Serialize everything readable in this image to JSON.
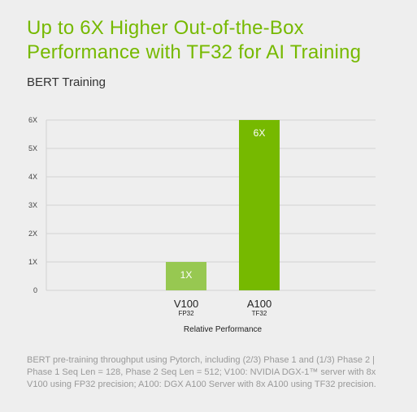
{
  "header": {
    "title_line1": "Up to 6X Higher Out-of-the-Box",
    "title_line2": "Performance with TF32 for AI Training"
  },
  "chart_data": {
    "type": "bar",
    "title": "BERT Training",
    "xlabel": "Relative Performance",
    "ylabel": "",
    "ylim": [
      0,
      6
    ],
    "yticks": [
      "0",
      "1X",
      "2X",
      "3X",
      "4X",
      "5X",
      "6X"
    ],
    "categories": [
      "V100",
      "A100"
    ],
    "category_sublabels": [
      "FP32",
      "TF32"
    ],
    "values": [
      1,
      6
    ],
    "data_labels": [
      "1X",
      "6X"
    ],
    "colors": [
      "#97c851",
      "#76b900"
    ],
    "grid": true
  },
  "footnote": {
    "line1": "BERT pre-training throughput using Pytorch, including (2/3) Phase 1 and (1/3) Phase 2 |",
    "line2": "Phase 1 Seq Len = 128, Phase 2 Seq Len = 512; V100: NVIDIA DGX-1™ server with 8x",
    "line3": "V100 using FP32 precision; A100: DGX A100 Server with 8x A100 using TF32 precision."
  }
}
